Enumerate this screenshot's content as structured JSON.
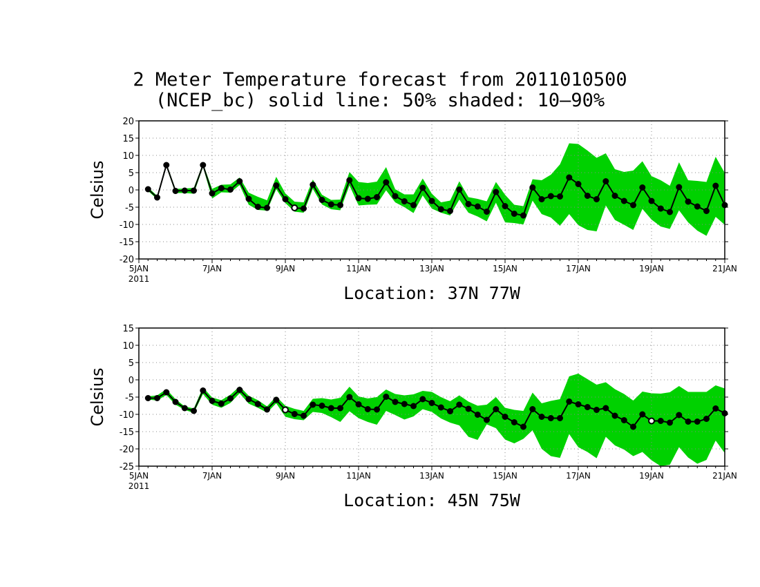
{
  "title_line1": "2 Meter Temperature forecast from 2011010500",
  "title_line2": "(NCEP_bc) solid line: 50% shaded: 10–90%",
  "colors": {
    "band": "#00d100",
    "line": "#000000",
    "grid": "#888888"
  },
  "chart_data": [
    {
      "type": "line",
      "location_label": "Location: 37N 77W",
      "ylabel": "Celsius",
      "ylim": [
        -20,
        20
      ],
      "yticks": [
        -20,
        -15,
        -10,
        -5,
        0,
        5,
        10,
        15,
        20
      ],
      "xlim": [
        "2011-01-05",
        "2011-01-21"
      ],
      "xticks": [
        {
          "date": "2011-01-05",
          "label": "5JAN",
          "sublabel": "2011"
        },
        {
          "date": "2011-01-07",
          "label": "7JAN"
        },
        {
          "date": "2011-01-09",
          "label": "9JAN"
        },
        {
          "date": "2011-01-11",
          "label": "11JAN"
        },
        {
          "date": "2011-01-13",
          "label": "13JAN"
        },
        {
          "date": "2011-01-15",
          "label": "15JAN"
        },
        {
          "date": "2011-01-17",
          "label": "17JAN"
        },
        {
          "date": "2011-01-19",
          "label": "19JAN"
        },
        {
          "date": "2011-01-21",
          "label": "21JAN"
        }
      ],
      "x": [
        "2011-01-05 06:00",
        "2011-01-05 12:00",
        "2011-01-05 18:00",
        "2011-01-06 00:00",
        "2011-01-06 06:00",
        "2011-01-06 12:00",
        "2011-01-06 18:00",
        "2011-01-07 00:00",
        "2011-01-07 06:00",
        "2011-01-07 12:00",
        "2011-01-07 18:00",
        "2011-01-08 00:00",
        "2011-01-08 06:00",
        "2011-01-08 12:00",
        "2011-01-08 18:00",
        "2011-01-09 00:00",
        "2011-01-09 06:00",
        "2011-01-09 12:00",
        "2011-01-09 18:00",
        "2011-01-10 00:00",
        "2011-01-10 06:00",
        "2011-01-10 12:00",
        "2011-01-10 18:00",
        "2011-01-11 00:00",
        "2011-01-11 06:00",
        "2011-01-11 12:00",
        "2011-01-11 18:00",
        "2011-01-12 00:00",
        "2011-01-12 06:00",
        "2011-01-12 12:00",
        "2011-01-12 18:00",
        "2011-01-13 00:00",
        "2011-01-13 06:00",
        "2011-01-13 12:00",
        "2011-01-13 18:00",
        "2011-01-14 00:00",
        "2011-01-14 06:00",
        "2011-01-14 12:00",
        "2011-01-14 18:00",
        "2011-01-15 00:00",
        "2011-01-15 06:00",
        "2011-01-15 12:00",
        "2011-01-15 18:00",
        "2011-01-16 00:00",
        "2011-01-16 06:00",
        "2011-01-16 12:00",
        "2011-01-16 18:00",
        "2011-01-17 00:00",
        "2011-01-17 06:00",
        "2011-01-17 12:00",
        "2011-01-17 18:00",
        "2011-01-18 00:00",
        "2011-01-18 06:00",
        "2011-01-18 12:00",
        "2011-01-18 18:00",
        "2011-01-19 00:00",
        "2011-01-19 06:00",
        "2011-01-19 12:00",
        "2011-01-19 18:00",
        "2011-01-20 00:00",
        "2011-01-20 06:00",
        "2011-01-20 12:00",
        "2011-01-20 18:00",
        "2011-01-21 00:00"
      ],
      "median": [
        0.2,
        -2.2,
        7.2,
        -0.3,
        -0.2,
        -0.2,
        7.2,
        -1.0,
        0.5,
        0.1,
        2.5,
        -2.6,
        -4.9,
        -5.2,
        1.3,
        -2.7,
        -5.2,
        -5.4,
        1.5,
        -2.9,
        -4.2,
        -4.4,
        2.8,
        -2.4,
        -2.6,
        -2.1,
        2.2,
        -1.8,
        -3.3,
        -4.4,
        0.6,
        -3.2,
        -5.6,
        -6.1,
        0.1,
        -4.1,
        -4.8,
        -6.3,
        -0.6,
        -4.7,
        -6.9,
        -7.4,
        0.7,
        -2.7,
        -1.8,
        -1.9,
        3.6,
        1.7,
        -1.7,
        -2.7,
        2.5,
        -1.7,
        -3.2,
        -4.4,
        0.7,
        -3.2,
        -5.4,
        -6.4,
        0.8,
        -3.4,
        -4.8,
        -6.1,
        1.2,
        -4.4
      ],
      "p10": [
        -0.3,
        -2.7,
        6.7,
        -0.9,
        -0.9,
        -1.1,
        6.6,
        -2.5,
        -0.7,
        -0.8,
        1.4,
        -4.3,
        -5.8,
        -6.0,
        0.2,
        -3.8,
        -6.3,
        -6.6,
        0.3,
        -4.2,
        -5.6,
        -5.9,
        1.3,
        -4.5,
        -4.3,
        -4.2,
        -0.1,
        -3.6,
        -5.0,
        -6.7,
        -1.6,
        -5.4,
        -6.6,
        -7.4,
        -2.8,
        -6.6,
        -7.7,
        -9.1,
        -3.7,
        -9.4,
        -9.6,
        -10.0,
        -3.1,
        -7.0,
        -8.0,
        -10.4,
        -7.0,
        -10.2,
        -11.6,
        -12.0,
        -4.5,
        -8.7,
        -10.1,
        -11.6,
        -5.5,
        -8.6,
        -10.6,
        -11.3,
        -5.9,
        -9.4,
        -11.8,
        -13.3,
        -7.8,
        -10.1
      ],
      "p90": [
        0.7,
        -1.7,
        7.7,
        0.3,
        0.4,
        0.6,
        7.7,
        0.3,
        1.5,
        1.6,
        3.6,
        -0.8,
        -2.0,
        -3.0,
        3.8,
        -1.0,
        -3.4,
        -3.6,
        3.0,
        -1.4,
        -2.9,
        -2.8,
        5.2,
        2.3,
        2.0,
        2.4,
        6.6,
        0.2,
        -1.3,
        -1.3,
        3.3,
        -1.1,
        -3.6,
        -3.1,
        2.5,
        -2.1,
        -2.6,
        -3.3,
        2.3,
        -1.4,
        -4.3,
        -4.7,
        3.1,
        2.8,
        4.4,
        7.4,
        13.5,
        13.3,
        11.4,
        9.3,
        10.6,
        6.0,
        5.2,
        5.6,
        8.3,
        4.0,
        2.8,
        1.2,
        8.0,
        2.8,
        2.6,
        2.3,
        9.6,
        4.9
      ],
      "marker_open": [
        false,
        false,
        false,
        false,
        false,
        false,
        false,
        false,
        false,
        false,
        false,
        false,
        false,
        false,
        false,
        false,
        true,
        false,
        false,
        false,
        false,
        false,
        false,
        false,
        false,
        false,
        false,
        false,
        false,
        false,
        false,
        false,
        false,
        false,
        false,
        false,
        false,
        false,
        false,
        false,
        false,
        false,
        false,
        false,
        false,
        false,
        false,
        false,
        false,
        false,
        false,
        false,
        false,
        false,
        false,
        false,
        false,
        false,
        false,
        false,
        false,
        false,
        false,
        false
      ]
    },
    {
      "type": "line",
      "location_label": "Location: 45N 75W",
      "ylabel": "Celsius",
      "ylim": [
        -25,
        15
      ],
      "yticks": [
        -25,
        -20,
        -15,
        -10,
        -5,
        0,
        5,
        10,
        15
      ],
      "xlim": [
        "2011-01-05",
        "2011-01-21"
      ],
      "xticks": [
        {
          "date": "2011-01-05",
          "label": "5JAN",
          "sublabel": "2011"
        },
        {
          "date": "2011-01-07",
          "label": "7JAN"
        },
        {
          "date": "2011-01-09",
          "label": "9JAN"
        },
        {
          "date": "2011-01-11",
          "label": "11JAN"
        },
        {
          "date": "2011-01-13",
          "label": "13JAN"
        },
        {
          "date": "2011-01-15",
          "label": "15JAN"
        },
        {
          "date": "2011-01-17",
          "label": "17JAN"
        },
        {
          "date": "2011-01-19",
          "label": "19JAN"
        },
        {
          "date": "2011-01-21",
          "label": "21JAN"
        }
      ],
      "x": [
        "2011-01-05 06:00",
        "2011-01-05 12:00",
        "2011-01-05 18:00",
        "2011-01-06 00:00",
        "2011-01-06 06:00",
        "2011-01-06 12:00",
        "2011-01-06 18:00",
        "2011-01-07 00:00",
        "2011-01-07 06:00",
        "2011-01-07 12:00",
        "2011-01-07 18:00",
        "2011-01-08 00:00",
        "2011-01-08 06:00",
        "2011-01-08 12:00",
        "2011-01-08 18:00",
        "2011-01-09 00:00",
        "2011-01-09 06:00",
        "2011-01-09 12:00",
        "2011-01-09 18:00",
        "2011-01-10 00:00",
        "2011-01-10 06:00",
        "2011-01-10 12:00",
        "2011-01-10 18:00",
        "2011-01-11 00:00",
        "2011-01-11 06:00",
        "2011-01-11 12:00",
        "2011-01-11 18:00",
        "2011-01-12 00:00",
        "2011-01-12 06:00",
        "2011-01-12 12:00",
        "2011-01-12 18:00",
        "2011-01-13 00:00",
        "2011-01-13 06:00",
        "2011-01-13 12:00",
        "2011-01-13 18:00",
        "2011-01-14 00:00",
        "2011-01-14 06:00",
        "2011-01-14 12:00",
        "2011-01-14 18:00",
        "2011-01-15 00:00",
        "2011-01-15 06:00",
        "2011-01-15 12:00",
        "2011-01-15 18:00",
        "2011-01-16 00:00",
        "2011-01-16 06:00",
        "2011-01-16 12:00",
        "2011-01-16 18:00",
        "2011-01-17 00:00",
        "2011-01-17 06:00",
        "2011-01-17 12:00",
        "2011-01-17 18:00",
        "2011-01-18 00:00",
        "2011-01-18 06:00",
        "2011-01-18 12:00",
        "2011-01-18 18:00",
        "2011-01-19 00:00",
        "2011-01-19 06:00",
        "2011-01-19 12:00",
        "2011-01-19 18:00",
        "2011-01-20 00:00",
        "2011-01-20 06:00",
        "2011-01-20 12:00",
        "2011-01-20 18:00",
        "2011-01-21 00:00"
      ],
      "median": [
        -5.3,
        -5.3,
        -3.6,
        -6.4,
        -8.2,
        -9.0,
        -3.1,
        -6.1,
        -6.9,
        -5.4,
        -2.9,
        -5.6,
        -7.0,
        -8.6,
        -5.8,
        -8.7,
        -9.9,
        -10.4,
        -7.2,
        -7.5,
        -8.2,
        -8.2,
        -5.0,
        -7.1,
        -8.5,
        -8.6,
        -4.9,
        -6.4,
        -7.0,
        -7.6,
        -5.6,
        -6.7,
        -8.0,
        -9.1,
        -7.2,
        -8.4,
        -10.1,
        -11.6,
        -8.5,
        -10.7,
        -12.3,
        -13.6,
        -8.5,
        -10.7,
        -11.1,
        -11.1,
        -6.3,
        -7.1,
        -7.9,
        -8.7,
        -8.2,
        -10.4,
        -11.7,
        -13.6,
        -10.0,
        -11.9,
        -11.9,
        -12.4,
        -10.2,
        -12.1,
        -12.1,
        -11.3,
        -8.3,
        -9.7
      ],
      "p10": [
        -5.7,
        -6.0,
        -4.4,
        -7.2,
        -8.7,
        -9.6,
        -4.1,
        -7.2,
        -8.1,
        -6.7,
        -3.9,
        -6.9,
        -8.1,
        -9.5,
        -6.8,
        -10.7,
        -11.4,
        -11.7,
        -9.3,
        -9.6,
        -10.8,
        -12.2,
        -9.1,
        -11.1,
        -12.2,
        -13.0,
        -9.0,
        -10.2,
        -11.5,
        -10.6,
        -8.5,
        -9.3,
        -11.2,
        -12.4,
        -13.2,
        -16.5,
        -17.4,
        -12.9,
        -14.0,
        -17.3,
        -18.4,
        -17.1,
        -14.6,
        -20.0,
        -22.1,
        -22.6,
        -15.7,
        -19.5,
        -20.9,
        -22.7,
        -16.5,
        -19.0,
        -20.2,
        -22.1,
        -20.9,
        -23.3,
        -25.0,
        -24.6,
        -19.5,
        -22.5,
        -24.3,
        -23.2,
        -17.6,
        -21.2
      ],
      "p90": [
        -4.8,
        -4.5,
        -2.7,
        -5.6,
        -7.7,
        -8.3,
        -2.2,
        -5.1,
        -5.9,
        -4.3,
        -1.9,
        -4.6,
        -5.9,
        -7.7,
        -4.8,
        -7.5,
        -8.4,
        -9.0,
        -5.5,
        -5.3,
        -5.7,
        -5.2,
        -2.0,
        -4.8,
        -5.4,
        -5.0,
        -2.8,
        -4.1,
        -4.5,
        -4.2,
        -3.2,
        -3.5,
        -5.0,
        -6.2,
        -4.5,
        -6.3,
        -7.5,
        -7.2,
        -5.0,
        -8.1,
        -8.7,
        -9.0,
        -3.7,
        -6.8,
        -6.1,
        -5.6,
        1.0,
        1.8,
        0.2,
        -1.4,
        -0.7,
        -2.7,
        -4.1,
        -6.0,
        -3.4,
        -3.9,
        -4.0,
        -3.6,
        -1.8,
        -3.5,
        -3.5,
        -3.5,
        -1.6,
        -2.5
      ],
      "marker_open": [
        false,
        false,
        false,
        false,
        false,
        false,
        false,
        false,
        false,
        false,
        false,
        false,
        false,
        false,
        false,
        true,
        false,
        false,
        false,
        false,
        false,
        false,
        false,
        false,
        false,
        false,
        false,
        false,
        false,
        false,
        false,
        false,
        false,
        false,
        false,
        false,
        false,
        false,
        false,
        false,
        false,
        false,
        false,
        false,
        false,
        false,
        false,
        false,
        false,
        false,
        false,
        false,
        false,
        false,
        false,
        true,
        false,
        false,
        false,
        false,
        false,
        false,
        false,
        false
      ]
    }
  ]
}
